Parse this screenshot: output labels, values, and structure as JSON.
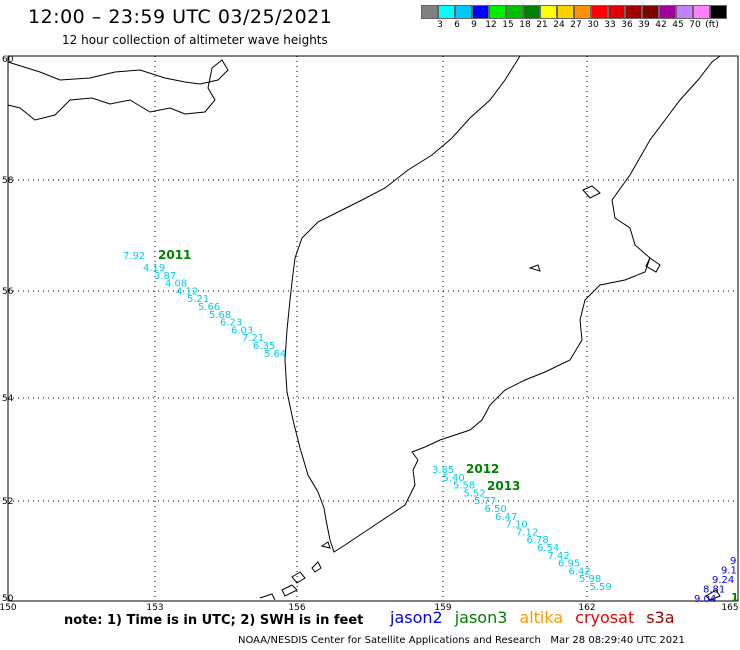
{
  "header": {
    "title": "12:00 – 23:59 UTC 03/25/2021",
    "subtitle": "12 hour collection of altimeter wave heights"
  },
  "legend": {
    "colors": [
      "#808080",
      "#00ffff",
      "#00c8ff",
      "#0000ff",
      "#00ee00",
      "#00c000",
      "#008000",
      "#ffff00",
      "#ffd000",
      "#ff9000",
      "#ff0000",
      "#e00000",
      "#a00000",
      "#800000",
      "#a000a0",
      "#c080ff",
      "#ff80ff",
      "#000000"
    ],
    "labels": [
      "3",
      "6",
      "9",
      "12",
      "15",
      "18",
      "21",
      "24",
      "27",
      "30",
      "33",
      "36",
      "39",
      "42",
      "45",
      "70",
      "(ft)"
    ]
  },
  "axes": {
    "lon_labels": [
      "150",
      "153",
      "156",
      "159",
      "162",
      "165"
    ],
    "lat_labels": [
      "60",
      "58",
      "56",
      "54",
      "52",
      "50"
    ]
  },
  "tracks": [
    {
      "satellite": "jason3",
      "pass_label": "2011",
      "color": "#00ccee",
      "label_color": "#008000",
      "values": [
        "7.92",
        "4.19",
        "3.87",
        "4.08",
        "4.12",
        "5.21",
        "5.66",
        "5.68",
        "6.23",
        "6.03",
        "7.21",
        "6.35",
        "5.64"
      ]
    },
    {
      "satellite": "jason3",
      "pass_label": "2012",
      "color": "#00ccee",
      "label_color": "#008000",
      "values": [
        "3.85",
        "5.40",
        "5.58",
        "5.52",
        "5.77",
        "6.50",
        "6.47",
        "7.10",
        "7.12",
        "6.78",
        "6.54",
        "7.42",
        "6.95",
        "6.42",
        "5.98",
        "5.59"
      ]
    },
    {
      "satellite": "jason3",
      "pass_label": "2013",
      "color": "#00ccee",
      "label_color": "#008000",
      "values": []
    },
    {
      "satellite": "jason2",
      "pass_label": "",
      "color": "#0000ee",
      "label_color": "#008000",
      "values": [
        "9.04",
        "8.81",
        "9.24",
        "9.1",
        "9"
      ]
    }
  ],
  "edge_label": "1",
  "footer": {
    "note": "note: 1) Time is in UTC; 2) SWH is in feet",
    "satellites": [
      {
        "name": "jason2",
        "color": "#0000ee"
      },
      {
        "name": "jason3",
        "color": "#008000"
      },
      {
        "name": "altika",
        "color": "#ff9900"
      },
      {
        "name": "cryosat",
        "color": "#ee0000"
      },
      {
        "name": "s3a",
        "color": "#990000"
      }
    ],
    "credit": "NOAA/NESDIS Center for Satellite Applications and Research   Mar 28 08:29:40 UTC 2021"
  }
}
